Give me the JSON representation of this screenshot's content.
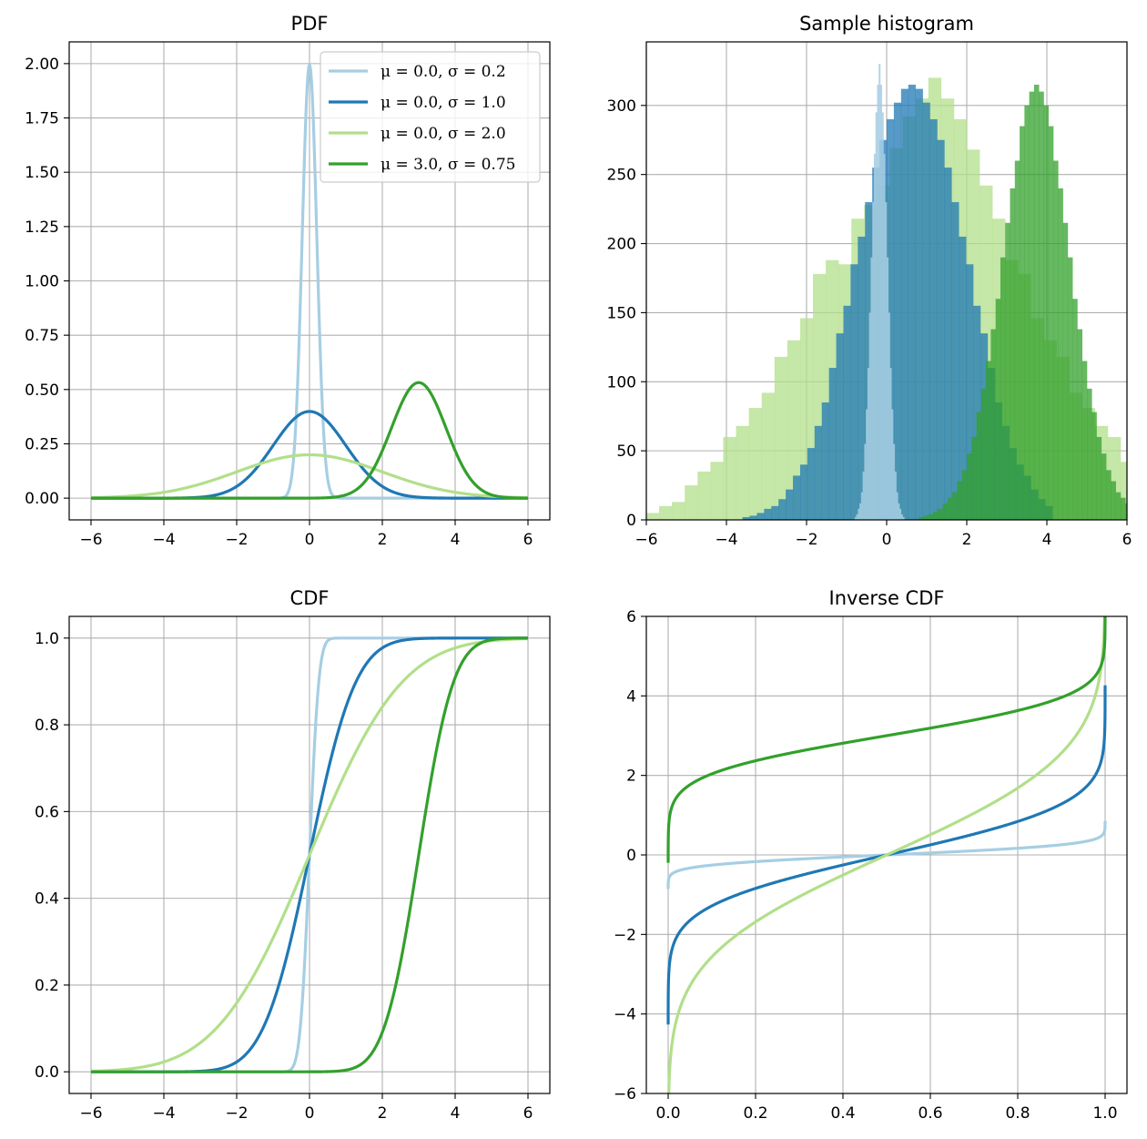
{
  "chart_data": [
    {
      "type": "line",
      "title": "PDF",
      "xlabel": "",
      "ylabel": "",
      "xlim": [
        -6.6,
        6.6
      ],
      "ylim": [
        -0.1,
        2.1
      ],
      "xticks": [
        -6,
        -4,
        -2,
        0,
        2,
        4,
        6
      ],
      "xtick_labels": [
        "−6",
        "−4",
        "−2",
        "0",
        "2",
        "4",
        "6"
      ],
      "yticks": [
        0,
        0.25,
        0.5,
        0.75,
        1.0,
        1.25,
        1.5,
        1.75,
        2.0
      ],
      "ytick_labels": [
        "0.00",
        "0.25",
        "0.50",
        "0.75",
        "1.00",
        "1.25",
        "1.50",
        "1.75",
        "2.00"
      ],
      "grid": true,
      "legend_position": "top-right",
      "x_range": [
        -6,
        6
      ],
      "series": [
        {
          "name": "μ = 0.0, σ = 0.2",
          "mu": 0.0,
          "sigma": 0.2,
          "color": "#a6cee3",
          "sample_points": {
            "x": [
              -0.4,
              -0.2,
              0,
              0.2,
              0.4
            ],
            "y": [
              0.27,
              1.21,
              1.99,
              1.21,
              0.27
            ]
          }
        },
        {
          "name": "μ = 0.0, σ = 1.0",
          "mu": 0.0,
          "sigma": 1.0,
          "color": "#1f78b4",
          "sample_points": {
            "x": [
              -2,
              -1,
              0,
              1,
              2
            ],
            "y": [
              0.05,
              0.24,
              0.4,
              0.24,
              0.05
            ]
          }
        },
        {
          "name": "μ = 0.0, σ = 2.0",
          "mu": 0.0,
          "sigma": 2.0,
          "color": "#b2df8a",
          "sample_points": {
            "x": [
              -4,
              -2,
              0,
              2,
              4
            ],
            "y": [
              0.03,
              0.12,
              0.2,
              0.12,
              0.03
            ]
          }
        },
        {
          "name": "μ = 3.0, σ = 0.75",
          "mu": 3.0,
          "sigma": 0.75,
          "color": "#33a02c",
          "sample_points": {
            "x": [
              1.5,
              2.25,
              3,
              3.75,
              4.5
            ],
            "y": [
              0.07,
              0.32,
              0.53,
              0.32,
              0.07
            ]
          }
        }
      ]
    },
    {
      "type": "bar",
      "title": "Sample histogram",
      "xlabel": "",
      "ylabel": "",
      "xlim": [
        -6,
        6
      ],
      "ylim": [
        0,
        346
      ],
      "xticks": [
        -6,
        -4,
        -2,
        0,
        2,
        4,
        6
      ],
      "xtick_labels": [
        "−6",
        "−4",
        "−2",
        "0",
        "2",
        "4",
        "6"
      ],
      "yticks": [
        0,
        50,
        100,
        150,
        200,
        250,
        300
      ],
      "ytick_labels": [
        "0",
        "50",
        "100",
        "150",
        "200",
        "250",
        "300"
      ],
      "grid": true,
      "series": [
        {
          "mu": 0.0,
          "sigma": 2.0,
          "color": "#b2df8a",
          "opacity": 0.75,
          "bin_width": 0.32,
          "bin_start": -6.0,
          "values": [
            5,
            10,
            13,
            25,
            35,
            42,
            60,
            68,
            81,
            92,
            118,
            130,
            146,
            178,
            188,
            185,
            218,
            228,
            242,
            269,
            292,
            305,
            320,
            305,
            290,
            268,
            242,
            218,
            188,
            178,
            146,
            130,
            118,
            92,
            81,
            68,
            60,
            42,
            35,
            25,
            18,
            13,
            10,
            5
          ]
        },
        {
          "mu": 0.0,
          "sigma": 1.0,
          "color": "#1f78b4",
          "opacity": 0.75,
          "bin_width": 0.18,
          "bin_start": -3.6,
          "values": [
            2,
            3,
            5,
            8,
            10,
            15,
            22,
            32,
            40,
            52,
            68,
            85,
            110,
            135,
            155,
            185,
            205,
            230,
            255,
            275,
            290,
            302,
            312,
            315,
            312,
            302,
            290,
            275,
            255,
            230,
            205,
            185,
            155,
            135,
            110,
            85,
            68,
            52,
            40,
            32,
            22,
            15,
            10
          ]
        },
        {
          "mu": 0.0,
          "sigma": 0.2,
          "color": "#a6cee3",
          "opacity": 0.85,
          "bin_width": 0.04,
          "bin_start": -0.8,
          "values": [
            2,
            4,
            8,
            12,
            20,
            35,
            55,
            80,
            110,
            150,
            190,
            230,
            265,
            295,
            315,
            330,
            315,
            295,
            265,
            230,
            190,
            150,
            110,
            80,
            55,
            35,
            20,
            12,
            8,
            4,
            2
          ]
        },
        {
          "mu": 3.0,
          "sigma": 0.75,
          "color": "#33a02c",
          "opacity": 0.75,
          "bin_width": 0.12,
          "bin_start": 0.8,
          "values": [
            2,
            3,
            4,
            6,
            8,
            12,
            16,
            20,
            28,
            36,
            48,
            60,
            78,
            95,
            115,
            138,
            160,
            190,
            215,
            240,
            260,
            285,
            300,
            310,
            315,
            310,
            300,
            285,
            260,
            240,
            215,
            190,
            160,
            138,
            115,
            95,
            78,
            60,
            48,
            36,
            28,
            20,
            16,
            12,
            8,
            6,
            4
          ]
        }
      ]
    },
    {
      "type": "line",
      "title": "CDF",
      "xlabel": "",
      "ylabel": "",
      "xlim": [
        -6.6,
        6.6
      ],
      "ylim": [
        -0.05,
        1.05
      ],
      "xticks": [
        -6,
        -4,
        -2,
        0,
        2,
        4,
        6
      ],
      "xtick_labels": [
        "−6",
        "−4",
        "−2",
        "0",
        "2",
        "4",
        "6"
      ],
      "yticks": [
        0.0,
        0.2,
        0.4,
        0.6,
        0.8,
        1.0
      ],
      "ytick_labels": [
        "0.0",
        "0.2",
        "0.4",
        "0.6",
        "0.8",
        "1.0"
      ],
      "grid": true,
      "x_range": [
        -6,
        6
      ],
      "series": [
        {
          "mu": 0.0,
          "sigma": 0.2,
          "color": "#a6cee3",
          "sample_points": {
            "x": [
              -0.4,
              0,
              0.4
            ],
            "y": [
              0.02,
              0.5,
              0.98
            ]
          }
        },
        {
          "mu": 0.0,
          "sigma": 1.0,
          "color": "#1f78b4",
          "sample_points": {
            "x": [
              -2,
              0,
              2
            ],
            "y": [
              0.02,
              0.5,
              0.98
            ]
          }
        },
        {
          "mu": 0.0,
          "sigma": 2.0,
          "color": "#b2df8a",
          "sample_points": {
            "x": [
              -4,
              0,
              4
            ],
            "y": [
              0.02,
              0.5,
              0.98
            ]
          }
        },
        {
          "mu": 3.0,
          "sigma": 0.75,
          "color": "#33a02c",
          "sample_points": {
            "x": [
              1.5,
              3,
              4.5
            ],
            "y": [
              0.02,
              0.5,
              0.98
            ]
          }
        }
      ]
    },
    {
      "type": "line",
      "title": "Inverse CDF",
      "xlabel": "",
      "ylabel": "",
      "xlim": [
        -0.05,
        1.05
      ],
      "ylim": [
        -6,
        6
      ],
      "xticks": [
        0.0,
        0.2,
        0.4,
        0.6,
        0.8,
        1.0
      ],
      "xtick_labels": [
        "0.0",
        "0.2",
        "0.4",
        "0.6",
        "0.8",
        "1.0"
      ],
      "yticks": [
        -6,
        -4,
        -2,
        0,
        2,
        4,
        6
      ],
      "ytick_labels": [
        "−6",
        "−4",
        "−2",
        "0",
        "2",
        "4",
        "6"
      ],
      "grid": true,
      "p_range": [
        1e-05,
        0.99999
      ],
      "series": [
        {
          "mu": 0.0,
          "sigma": 0.2,
          "color": "#a6cee3",
          "sample_points": {
            "x": [
              0.02,
              0.5,
              0.98
            ],
            "y": [
              -0.41,
              0,
              0.41
            ]
          }
        },
        {
          "mu": 0.0,
          "sigma": 1.0,
          "color": "#1f78b4",
          "sample_points": {
            "x": [
              0.02,
              0.5,
              0.98
            ],
            "y": [
              -2.05,
              0,
              2.05
            ]
          }
        },
        {
          "mu": 0.0,
          "sigma": 2.0,
          "color": "#b2df8a",
          "sample_points": {
            "x": [
              0.02,
              0.5,
              0.98
            ],
            "y": [
              -4.1,
              0,
              4.1
            ]
          }
        },
        {
          "mu": 3.0,
          "sigma": 0.75,
          "color": "#33a02c",
          "sample_points": {
            "x": [
              0.02,
              0.5,
              0.98
            ],
            "y": [
              1.46,
              3.0,
              4.54
            ]
          }
        }
      ]
    }
  ]
}
